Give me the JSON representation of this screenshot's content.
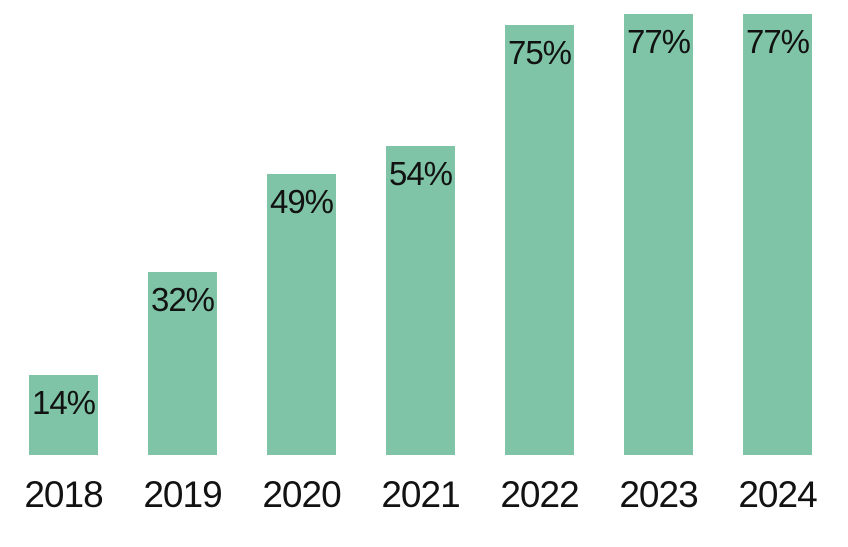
{
  "chart_data": {
    "type": "bar",
    "categories": [
      "2018",
      "2019",
      "2020",
      "2021",
      "2022",
      "2023",
      "2024"
    ],
    "values": [
      14,
      32,
      49,
      54,
      75,
      77,
      77
    ],
    "value_labels": [
      "14%",
      "32%",
      "49%",
      "54%",
      "75%",
      "77%",
      "77%"
    ],
    "title": "",
    "xlabel": "",
    "ylabel": "",
    "ylim": [
      0,
      77
    ],
    "grid": false,
    "legend": false,
    "axis_lines": "none",
    "value_label_position": "inside-top",
    "bar_color": "#7fc4a6",
    "text_color": "#121212",
    "background_color": "#ffffff"
  }
}
